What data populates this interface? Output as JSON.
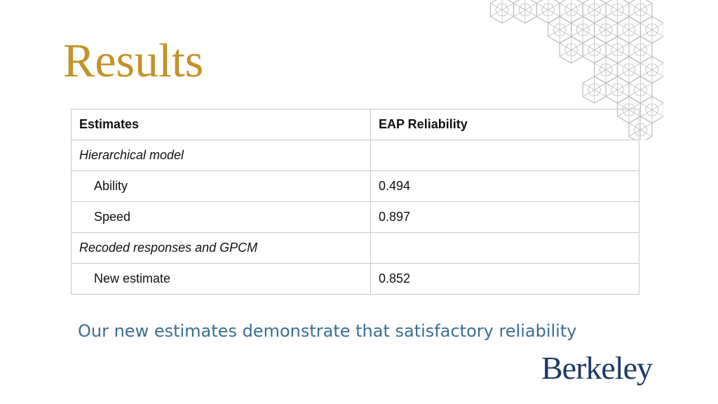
{
  "slide": {
    "title": "Results",
    "caption": "Our new estimates demonstrate that satisfactory reliability",
    "logo_text": "Berkeley"
  },
  "table": {
    "headers": [
      "Estimates",
      "EAP Reliability"
    ],
    "rows": [
      {
        "label": "Hierarchical model",
        "value": "",
        "type": "section"
      },
      {
        "label": "Ability",
        "value": "0.494",
        "type": "item"
      },
      {
        "label": "Speed",
        "value": "0.897",
        "type": "item"
      },
      {
        "label": "Recoded responses and GPCM",
        "value": "",
        "type": "section"
      },
      {
        "label": "New estimate",
        "value": "0.852",
        "type": "item"
      }
    ]
  },
  "colors": {
    "title": "#C4922A",
    "caption": "#3B6E8F",
    "logo": "#1C3A66",
    "pattern": "#BDBDBD"
  },
  "icons": {
    "decoration": "geometric-hexagon-pattern-icon"
  }
}
